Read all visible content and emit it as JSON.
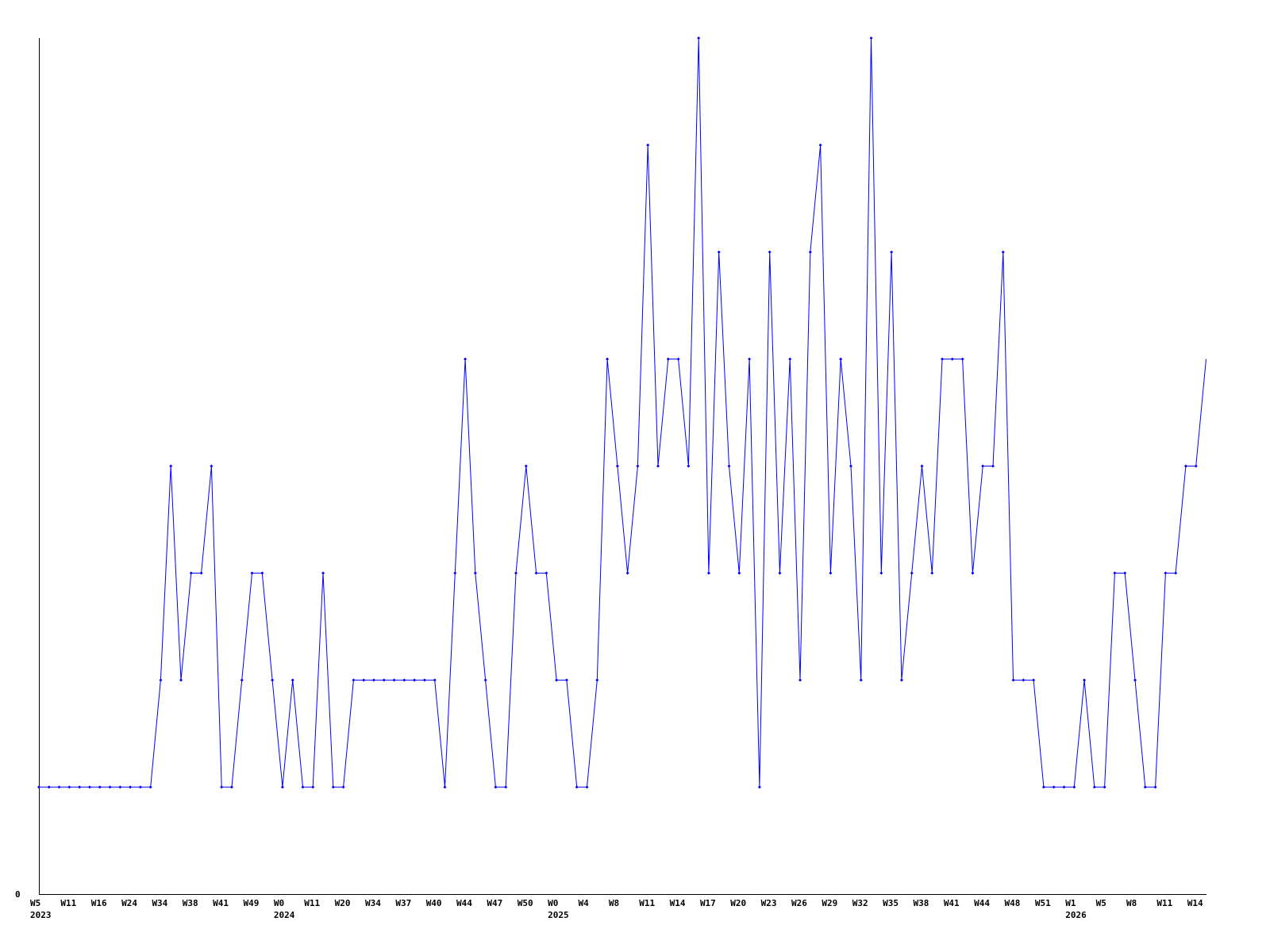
{
  "chart_data": {
    "type": "line",
    "title": "",
    "xlabel": "",
    "ylabel": "",
    "ylim": [
      0,
      8
    ],
    "y_tick_labels": [
      "0"
    ],
    "grid": false,
    "legend": "none",
    "line_color": "#0000ff",
    "axis_color": "#000000",
    "x_tick_labels": [
      {
        "label": "W5",
        "year": "2023"
      },
      {
        "label": "W11"
      },
      {
        "label": "W16"
      },
      {
        "label": "W24"
      },
      {
        "label": "W34"
      },
      {
        "label": "W38"
      },
      {
        "label": "W41"
      },
      {
        "label": "W49"
      },
      {
        "label": "W0",
        "year": "2024"
      },
      {
        "label": "W11"
      },
      {
        "label": "W20"
      },
      {
        "label": "W34"
      },
      {
        "label": "W37"
      },
      {
        "label": "W40"
      },
      {
        "label": "W44"
      },
      {
        "label": "W47"
      },
      {
        "label": "W50"
      },
      {
        "label": "W0",
        "year": "2025"
      },
      {
        "label": "W4"
      },
      {
        "label": "W8"
      },
      {
        "label": "W11"
      },
      {
        "label": "W14"
      },
      {
        "label": "W17"
      },
      {
        "label": "W20"
      },
      {
        "label": "W23"
      },
      {
        "label": "W26"
      },
      {
        "label": "W29"
      },
      {
        "label": "W32"
      },
      {
        "label": "W35"
      },
      {
        "label": "W38"
      },
      {
        "label": "W41"
      },
      {
        "label": "W44"
      },
      {
        "label": "W48"
      },
      {
        "label": "W51"
      },
      {
        "label": "W1",
        "year": "2026"
      },
      {
        "label": "W5"
      },
      {
        "label": "W8"
      },
      {
        "label": "W11"
      },
      {
        "label": "W14"
      }
    ],
    "values": [
      1,
      1,
      1,
      1,
      1,
      1,
      1,
      1,
      1,
      1,
      1,
      1,
      2,
      4,
      2,
      3,
      3,
      4,
      1,
      1,
      2,
      3,
      3,
      2,
      1,
      2,
      1,
      1,
      3,
      1,
      1,
      2,
      2,
      2,
      2,
      2,
      2,
      2,
      2,
      2,
      1,
      3,
      5,
      3,
      2,
      1,
      1,
      3,
      4,
      3,
      3,
      2,
      2,
      1,
      1,
      2,
      5,
      4,
      3,
      4,
      7,
      4,
      5,
      5,
      4,
      8,
      3,
      6,
      4,
      3,
      5,
      1,
      6,
      3,
      5,
      2,
      6,
      7,
      3,
      5,
      4,
      2,
      8,
      3,
      6,
      2,
      3,
      4,
      3,
      5,
      5,
      5,
      3,
      4,
      4,
      6,
      2,
      2,
      2,
      1,
      1,
      1,
      1,
      2,
      1,
      1,
      3,
      3,
      2,
      1,
      1,
      3,
      3,
      4,
      4,
      5
    ]
  }
}
